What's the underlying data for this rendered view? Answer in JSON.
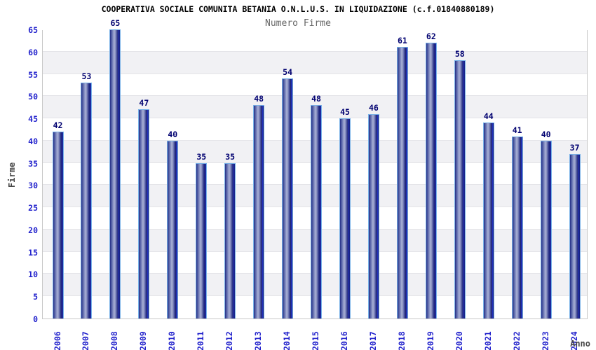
{
  "chart_data": {
    "type": "bar",
    "title": "COOPERATIVA SOCIALE COMUNITA BETANIA O.N.L.U.S. IN LIQUIDAZIONE (c.f.01840880189)",
    "subtitle": "Numero Firme",
    "xlabel": "Anno",
    "ylabel": "Firme",
    "categories": [
      "2006",
      "2007",
      "2008",
      "2009",
      "2010",
      "2011",
      "2012",
      "2013",
      "2014",
      "2015",
      "2016",
      "2017",
      "2018",
      "2019",
      "2020",
      "2021",
      "2022",
      "2023",
      "2024"
    ],
    "values": [
      42,
      53,
      65,
      47,
      40,
      35,
      35,
      48,
      54,
      48,
      45,
      46,
      61,
      62,
      58,
      44,
      41,
      40,
      37
    ],
    "ylim": [
      0,
      65
    ],
    "ytick_step": 5,
    "yticks": [
      0,
      5,
      10,
      15,
      20,
      25,
      30,
      35,
      40,
      45,
      50,
      55,
      60,
      65
    ],
    "grid": "horizontal-bands",
    "legend_position": "none",
    "value_labels_shown": true,
    "colors": {
      "bar_dark": "#1a2070",
      "bar_light": "#a8b0d6",
      "bar_highlight": "#2436d8",
      "bar_border": "#79b2e8",
      "tick_label": "#2222cc",
      "value_label": "#000070",
      "axis_label": "#474747",
      "title": "#000000",
      "subtitle": "#666666",
      "band_gray": "#f1f1f4",
      "band_white": "#ffffff",
      "plot_border": "#c8c8c8"
    }
  }
}
